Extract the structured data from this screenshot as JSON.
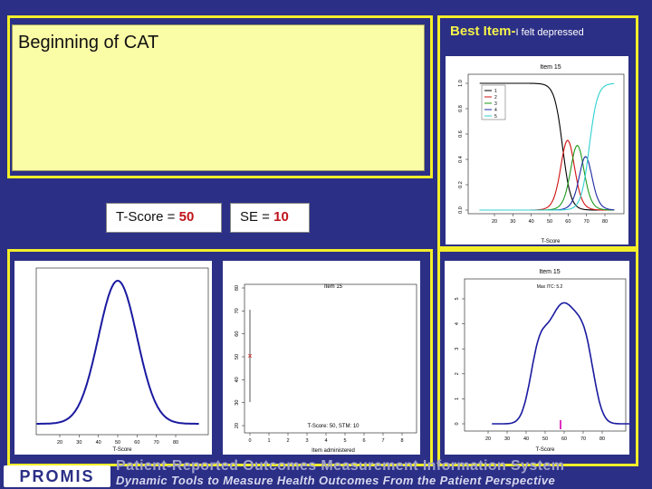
{
  "slide": {
    "title": "Beginning of CAT",
    "best_item_label": "Best Item-",
    "best_item_text": "I felt depressed",
    "tscore_label": "T-Score = ",
    "tscore_value": "50",
    "se_label": "SE = ",
    "se_value": "10"
  },
  "charts": {
    "item_curves": {
      "title": "Item 15",
      "xlabel": "T-Score",
      "xticks": [
        "20",
        "30",
        "40",
        "50",
        "60",
        "70",
        "80"
      ],
      "yticks": [
        "0.0",
        "0.2",
        "0.4",
        "0.6",
        "0.8",
        "1.0"
      ],
      "legend": [
        "1",
        "2",
        "3",
        "4",
        "5"
      ],
      "colors": [
        "#000000",
        "#d01010",
        "#1a9a1a",
        "#1a2aa0",
        "#30d0d0"
      ]
    },
    "prior": {
      "xlabel": "T-Score",
      "xticks": [
        "20",
        "30",
        "40",
        "50",
        "60",
        "70",
        "80"
      ]
    },
    "theta_trace": {
      "title": "Item 15",
      "xlabel": "Item administered",
      "annotation": "T-Score: 50, STM: 10",
      "xticks": [
        "0",
        "1",
        "2",
        "3",
        "4",
        "5",
        "6",
        "7",
        "8"
      ],
      "yticks": [
        "20",
        "30",
        "40",
        "50",
        "60",
        "70",
        "80"
      ]
    },
    "info": {
      "title": "Item 15",
      "subtitle": "Max ITC: 5.2",
      "xlabel": "T-Score",
      "xticks": [
        "20",
        "30",
        "40",
        "50",
        "60",
        "70",
        "80"
      ],
      "yticks": [
        "0",
        "1",
        "2",
        "3",
        "4",
        "5"
      ]
    }
  },
  "footer": {
    "logo": "PROMIS",
    "line1": "Patient-Reported Outcomes Measurement Information System",
    "line2": "Dynamic Tools to Measure Health Outcomes From the Patient Perspective"
  }
}
